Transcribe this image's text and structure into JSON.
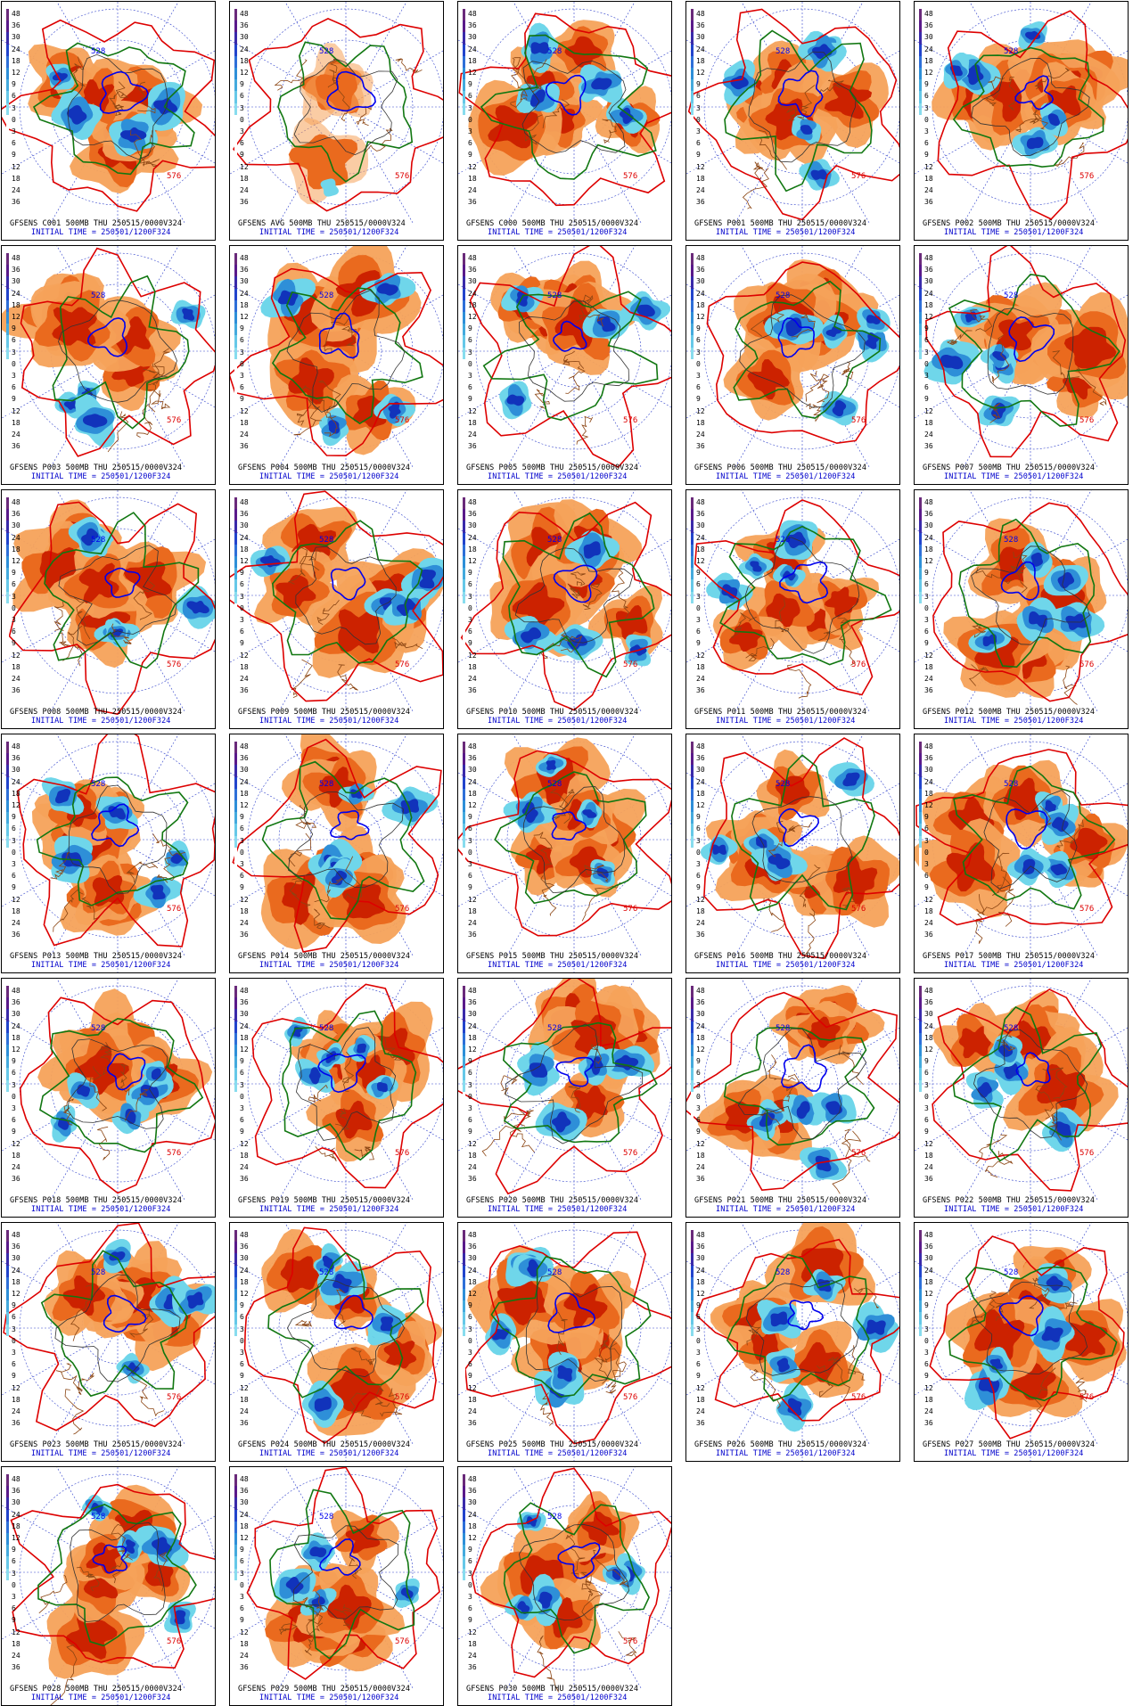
{
  "scale_ticks": [
    "48",
    "36",
    "30",
    "24",
    "18",
    "12",
    "9",
    "6",
    "3",
    "0",
    "3",
    "6",
    "9",
    "12",
    "18",
    "24",
    "36"
  ],
  "contour_labels": {
    "low": "528",
    "high": "576"
  },
  "initial_time_label": "INITIAL TIME = 250501/1200F324",
  "colors": {
    "warm_light": "#f5a25a",
    "warm_mid": "#ea6a1e",
    "warm_dark": "#cc2200",
    "cold_light": "#6fd6ea",
    "cold_mid": "#2e8fd8",
    "cold_dark": "#1133bb",
    "contour_red": "#dd0000",
    "contour_green": "#117711",
    "contour_blue": "#0000ee",
    "coast": "#8b4513",
    "grid": "#3344cc"
  },
  "panels": [
    {
      "id": "C001",
      "caption": "GFSENS C001 500MB THU 250515/0000V324"
    },
    {
      "id": "AVG",
      "caption": "GFSENS AVG 500MB THU 250515/0000V324"
    },
    {
      "id": "C000",
      "caption": "GFSENS C000 500MB THU 250515/0000V324"
    },
    {
      "id": "P001",
      "caption": "GFSENS P001 500MB THU 250515/0000V324"
    },
    {
      "id": "P002",
      "caption": "GFSENS P002 500MB THU 250515/0000V324"
    },
    {
      "id": "P003",
      "caption": "GFSENS P003 500MB THU 250515/0000V324"
    },
    {
      "id": "P004",
      "caption": "GFSENS P004 500MB THU 250515/0000V324"
    },
    {
      "id": "P005",
      "caption": "GFSENS P005 500MB THU 250515/0000V324"
    },
    {
      "id": "P006",
      "caption": "GFSENS P006 500MB THU 250515/0000V324"
    },
    {
      "id": "P007",
      "caption": "GFSENS P007 500MB THU 250515/0000V324"
    },
    {
      "id": "P008",
      "caption": "GFSENS P008 500MB THU 250515/0000V324"
    },
    {
      "id": "P009",
      "caption": "GFSENS P009 500MB THU 250515/0000V324"
    },
    {
      "id": "P010",
      "caption": "GFSENS P010 500MB THU 250515/0000V324"
    },
    {
      "id": "P011",
      "caption": "GFSENS P011 500MB THU 250515/0000V324"
    },
    {
      "id": "P012",
      "caption": "GFSENS P012 500MB THU 250515/0000V324"
    },
    {
      "id": "P013",
      "caption": "GFSENS P013 500MB THU 250515/0000V324"
    },
    {
      "id": "P014",
      "caption": "GFSENS P014 500MB THU 250515/0000V324"
    },
    {
      "id": "P015",
      "caption": "GFSENS P015 500MB THU 250515/0000V324"
    },
    {
      "id": "P016",
      "caption": "GFSENS P016 500MB THU 250515/0000V324"
    },
    {
      "id": "P017",
      "caption": "GFSENS P017 500MB THU 250515/0000V324"
    },
    {
      "id": "P018",
      "caption": "GFSENS P018 500MB THU 250515/0000V324"
    },
    {
      "id": "P019",
      "caption": "GFSENS P019 500MB THU 250515/0000V324"
    },
    {
      "id": "P020",
      "caption": "GFSENS P020 500MB THU 250515/0000V324"
    },
    {
      "id": "P021",
      "caption": "GFSENS P021 500MB THU 250515/0000V324"
    },
    {
      "id": "P022",
      "caption": "GFSENS P022 500MB THU 250515/0000V324"
    },
    {
      "id": "P023",
      "caption": "GFSENS P023 500MB THU 250515/0000V324"
    },
    {
      "id": "P024",
      "caption": "GFSENS P024 500MB THU 250515/0000V324"
    },
    {
      "id": "P025",
      "caption": "GFSENS P025 500MB THU 250515/0000V324"
    },
    {
      "id": "P026",
      "caption": "GFSENS P026 500MB THU 250515/0000V324"
    },
    {
      "id": "P027",
      "caption": "GFSENS P027 500MB THU 250515/0000V324"
    },
    {
      "id": "P028",
      "caption": "GFSENS P028 500MB THU 250515/0000V324"
    },
    {
      "id": "P029",
      "caption": "GFSENS P029 500MB THU 250515/0000V324"
    },
    {
      "id": "P030",
      "caption": "GFSENS P030 500MB THU 250515/0000V324"
    }
  ]
}
